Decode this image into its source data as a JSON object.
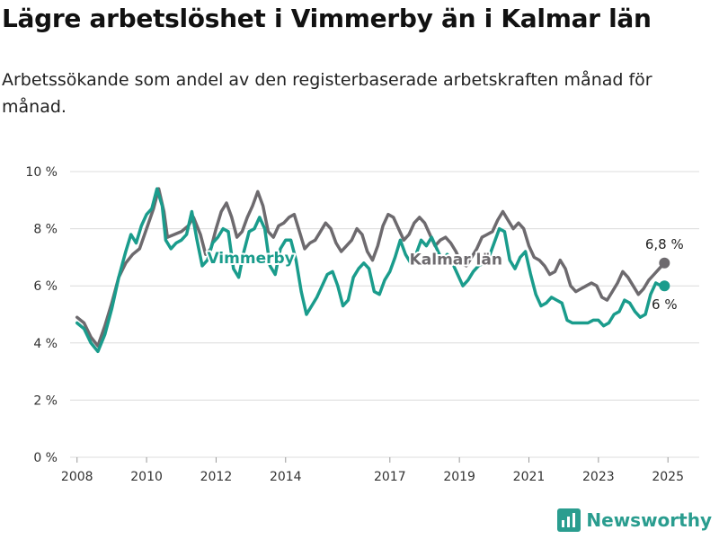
{
  "title": "Lägre arbetslöshet i Vimmerby än i Kalmar län",
  "subtitle": "Arbetssökande som andel av den registerbaserade arbetskraften månad för månad.",
  "brand": {
    "name": "Newsworthy",
    "icon": "newsworthy-bar-icon",
    "color": "#2a9d8f"
  },
  "chart_data": {
    "type": "line",
    "x_ticks": [
      "2008",
      "2010",
      "2012",
      "2014",
      "2017",
      "2019",
      "2021",
      "2023",
      "2025"
    ],
    "y_ticks": [
      "0 %",
      "2 %",
      "4 %",
      "6 %",
      "8 %",
      "10 %"
    ],
    "ylim": [
      0,
      10
    ],
    "xlim": [
      2007.8,
      2025.9
    ],
    "grid": true,
    "legend": "inline",
    "series": [
      {
        "name": "Kalmar län",
        "color": "#6d6a6e",
        "end_label": "6,8 %",
        "points": [
          [
            2008.0,
            4.9
          ],
          [
            2008.2,
            4.7
          ],
          [
            2008.4,
            4.2
          ],
          [
            2008.6,
            3.9
          ],
          [
            2008.8,
            4.6
          ],
          [
            2009.0,
            5.4
          ],
          [
            2009.2,
            6.3
          ],
          [
            2009.4,
            6.8
          ],
          [
            2009.6,
            7.1
          ],
          [
            2009.8,
            7.3
          ],
          [
            2010.0,
            8.0
          ],
          [
            2010.2,
            8.7
          ],
          [
            2010.35,
            9.4
          ],
          [
            2010.5,
            8.6
          ],
          [
            2010.6,
            7.7
          ],
          [
            2010.8,
            7.8
          ],
          [
            2011.0,
            7.9
          ],
          [
            2011.2,
            8.1
          ],
          [
            2011.35,
            8.4
          ],
          [
            2011.55,
            7.8
          ],
          [
            2011.7,
            7.1
          ],
          [
            2011.85,
            7.3
          ],
          [
            2012.0,
            8.0
          ],
          [
            2012.15,
            8.6
          ],
          [
            2012.3,
            8.9
          ],
          [
            2012.45,
            8.4
          ],
          [
            2012.6,
            7.7
          ],
          [
            2012.75,
            7.9
          ],
          [
            2012.9,
            8.4
          ],
          [
            2013.05,
            8.8
          ],
          [
            2013.2,
            9.3
          ],
          [
            2013.35,
            8.8
          ],
          [
            2013.5,
            7.9
          ],
          [
            2013.65,
            7.7
          ],
          [
            2013.8,
            8.1
          ],
          [
            2013.95,
            8.2
          ],
          [
            2014.1,
            8.4
          ],
          [
            2014.25,
            8.5
          ],
          [
            2014.4,
            7.9
          ],
          [
            2014.55,
            7.3
          ],
          [
            2014.7,
            7.5
          ],
          [
            2014.85,
            7.6
          ],
          [
            2015.0,
            7.9
          ],
          [
            2015.15,
            8.2
          ],
          [
            2015.3,
            8.0
          ],
          [
            2015.45,
            7.5
          ],
          [
            2015.6,
            7.2
          ],
          [
            2015.75,
            7.4
          ],
          [
            2015.9,
            7.6
          ],
          [
            2016.05,
            8.0
          ],
          [
            2016.2,
            7.8
          ],
          [
            2016.35,
            7.2
          ],
          [
            2016.5,
            6.9
          ],
          [
            2016.65,
            7.4
          ],
          [
            2016.8,
            8.1
          ],
          [
            2016.95,
            8.5
          ],
          [
            2017.1,
            8.4
          ],
          [
            2017.25,
            8.0
          ],
          [
            2017.4,
            7.6
          ],
          [
            2017.55,
            7.8
          ],
          [
            2017.7,
            8.2
          ],
          [
            2017.85,
            8.4
          ],
          [
            2018.0,
            8.2
          ],
          [
            2018.15,
            7.8
          ],
          [
            2018.3,
            7.4
          ],
          [
            2018.45,
            7.6
          ],
          [
            2018.6,
            7.7
          ],
          [
            2018.75,
            7.5
          ],
          [
            2018.9,
            7.2
          ],
          [
            2019.05,
            6.8
          ],
          [
            2019.2,
            6.7
          ],
          [
            2019.35,
            7.0
          ],
          [
            2019.5,
            7.3
          ],
          [
            2019.65,
            7.7
          ],
          [
            2019.8,
            7.8
          ],
          [
            2019.95,
            7.9
          ],
          [
            2020.1,
            8.3
          ],
          [
            2020.25,
            8.6
          ],
          [
            2020.4,
            8.3
          ],
          [
            2020.55,
            8.0
          ],
          [
            2020.7,
            8.2
          ],
          [
            2020.85,
            8.0
          ],
          [
            2021.0,
            7.4
          ],
          [
            2021.15,
            7.0
          ],
          [
            2021.3,
            6.9
          ],
          [
            2021.45,
            6.7
          ],
          [
            2021.6,
            6.4
          ],
          [
            2021.75,
            6.5
          ],
          [
            2021.9,
            6.9
          ],
          [
            2022.05,
            6.6
          ],
          [
            2022.2,
            6.0
          ],
          [
            2022.35,
            5.8
          ],
          [
            2022.5,
            5.9
          ],
          [
            2022.65,
            6.0
          ],
          [
            2022.8,
            6.1
          ],
          [
            2022.95,
            6.0
          ],
          [
            2023.1,
            5.6
          ],
          [
            2023.25,
            5.5
          ],
          [
            2023.4,
            5.8
          ],
          [
            2023.55,
            6.1
          ],
          [
            2023.7,
            6.5
          ],
          [
            2023.85,
            6.3
          ],
          [
            2024.0,
            6.0
          ],
          [
            2024.15,
            5.7
          ],
          [
            2024.3,
            5.9
          ],
          [
            2024.45,
            6.2
          ],
          [
            2024.6,
            6.4
          ],
          [
            2024.75,
            6.6
          ],
          [
            2024.9,
            6.8
          ]
        ]
      },
      {
        "name": "Vimmerby",
        "color": "#1a9c8c",
        "end_label": "6 %",
        "points": [
          [
            2008.0,
            4.7
          ],
          [
            2008.2,
            4.5
          ],
          [
            2008.4,
            4.0
          ],
          [
            2008.6,
            3.7
          ],
          [
            2008.8,
            4.3
          ],
          [
            2009.0,
            5.2
          ],
          [
            2009.2,
            6.3
          ],
          [
            2009.4,
            7.2
          ],
          [
            2009.55,
            7.8
          ],
          [
            2009.7,
            7.5
          ],
          [
            2009.85,
            8.1
          ],
          [
            2010.0,
            8.5
          ],
          [
            2010.15,
            8.7
          ],
          [
            2010.3,
            9.4
          ],
          [
            2010.45,
            8.8
          ],
          [
            2010.55,
            7.6
          ],
          [
            2010.7,
            7.3
          ],
          [
            2010.85,
            7.5
          ],
          [
            2011.0,
            7.6
          ],
          [
            2011.15,
            7.8
          ],
          [
            2011.3,
            8.6
          ],
          [
            2011.45,
            7.6
          ],
          [
            2011.6,
            6.7
          ],
          [
            2011.75,
            6.9
          ],
          [
            2011.9,
            7.5
          ],
          [
            2012.05,
            7.7
          ],
          [
            2012.2,
            8.0
          ],
          [
            2012.35,
            7.9
          ],
          [
            2012.5,
            6.6
          ],
          [
            2012.65,
            6.3
          ],
          [
            2012.8,
            7.2
          ],
          [
            2012.95,
            7.9
          ],
          [
            2013.1,
            8.0
          ],
          [
            2013.25,
            8.4
          ],
          [
            2013.4,
            8.0
          ],
          [
            2013.55,
            6.7
          ],
          [
            2013.7,
            6.4
          ],
          [
            2013.85,
            7.3
          ],
          [
            2014.0,
            7.6
          ],
          [
            2014.15,
            7.6
          ],
          [
            2014.3,
            6.9
          ],
          [
            2014.45,
            5.8
          ],
          [
            2014.6,
            5.0
          ],
          [
            2014.75,
            5.3
          ],
          [
            2014.9,
            5.6
          ],
          [
            2015.05,
            6.0
          ],
          [
            2015.2,
            6.4
          ],
          [
            2015.35,
            6.5
          ],
          [
            2015.5,
            6.0
          ],
          [
            2015.65,
            5.3
          ],
          [
            2015.8,
            5.5
          ],
          [
            2015.95,
            6.3
          ],
          [
            2016.1,
            6.6
          ],
          [
            2016.25,
            6.8
          ],
          [
            2016.4,
            6.6
          ],
          [
            2016.55,
            5.8
          ],
          [
            2016.7,
            5.7
          ],
          [
            2016.85,
            6.2
          ],
          [
            2017.0,
            6.5
          ],
          [
            2017.15,
            7.0
          ],
          [
            2017.3,
            7.6
          ],
          [
            2017.45,
            7.1
          ],
          [
            2017.6,
            6.8
          ],
          [
            2017.75,
            7.1
          ],
          [
            2017.9,
            7.6
          ],
          [
            2018.05,
            7.4
          ],
          [
            2018.2,
            7.7
          ],
          [
            2018.35,
            7.3
          ],
          [
            2018.5,
            6.9
          ],
          [
            2018.65,
            7.1
          ],
          [
            2018.8,
            6.8
          ],
          [
            2018.95,
            6.4
          ],
          [
            2019.1,
            6.0
          ],
          [
            2019.25,
            6.2
          ],
          [
            2019.4,
            6.5
          ],
          [
            2019.55,
            6.7
          ],
          [
            2019.7,
            6.8
          ],
          [
            2019.85,
            7.0
          ],
          [
            2020.0,
            7.5
          ],
          [
            2020.15,
            8.0
          ],
          [
            2020.3,
            7.9
          ],
          [
            2020.45,
            6.9
          ],
          [
            2020.6,
            6.6
          ],
          [
            2020.75,
            7.0
          ],
          [
            2020.9,
            7.2
          ],
          [
            2021.05,
            6.4
          ],
          [
            2021.2,
            5.7
          ],
          [
            2021.35,
            5.3
          ],
          [
            2021.5,
            5.4
          ],
          [
            2021.65,
            5.6
          ],
          [
            2021.8,
            5.5
          ],
          [
            2021.95,
            5.4
          ],
          [
            2022.1,
            4.8
          ],
          [
            2022.25,
            4.7
          ],
          [
            2022.4,
            4.7
          ],
          [
            2022.55,
            4.7
          ],
          [
            2022.7,
            4.7
          ],
          [
            2022.85,
            4.8
          ],
          [
            2023.0,
            4.8
          ],
          [
            2023.15,
            4.6
          ],
          [
            2023.3,
            4.7
          ],
          [
            2023.45,
            5.0
          ],
          [
            2023.6,
            5.1
          ],
          [
            2023.75,
            5.5
          ],
          [
            2023.9,
            5.4
          ],
          [
            2024.05,
            5.1
          ],
          [
            2024.2,
            4.9
          ],
          [
            2024.35,
            5.0
          ],
          [
            2024.5,
            5.7
          ],
          [
            2024.65,
            6.1
          ],
          [
            2024.8,
            6.0
          ],
          [
            2024.9,
            6.0
          ]
        ]
      }
    ]
  }
}
